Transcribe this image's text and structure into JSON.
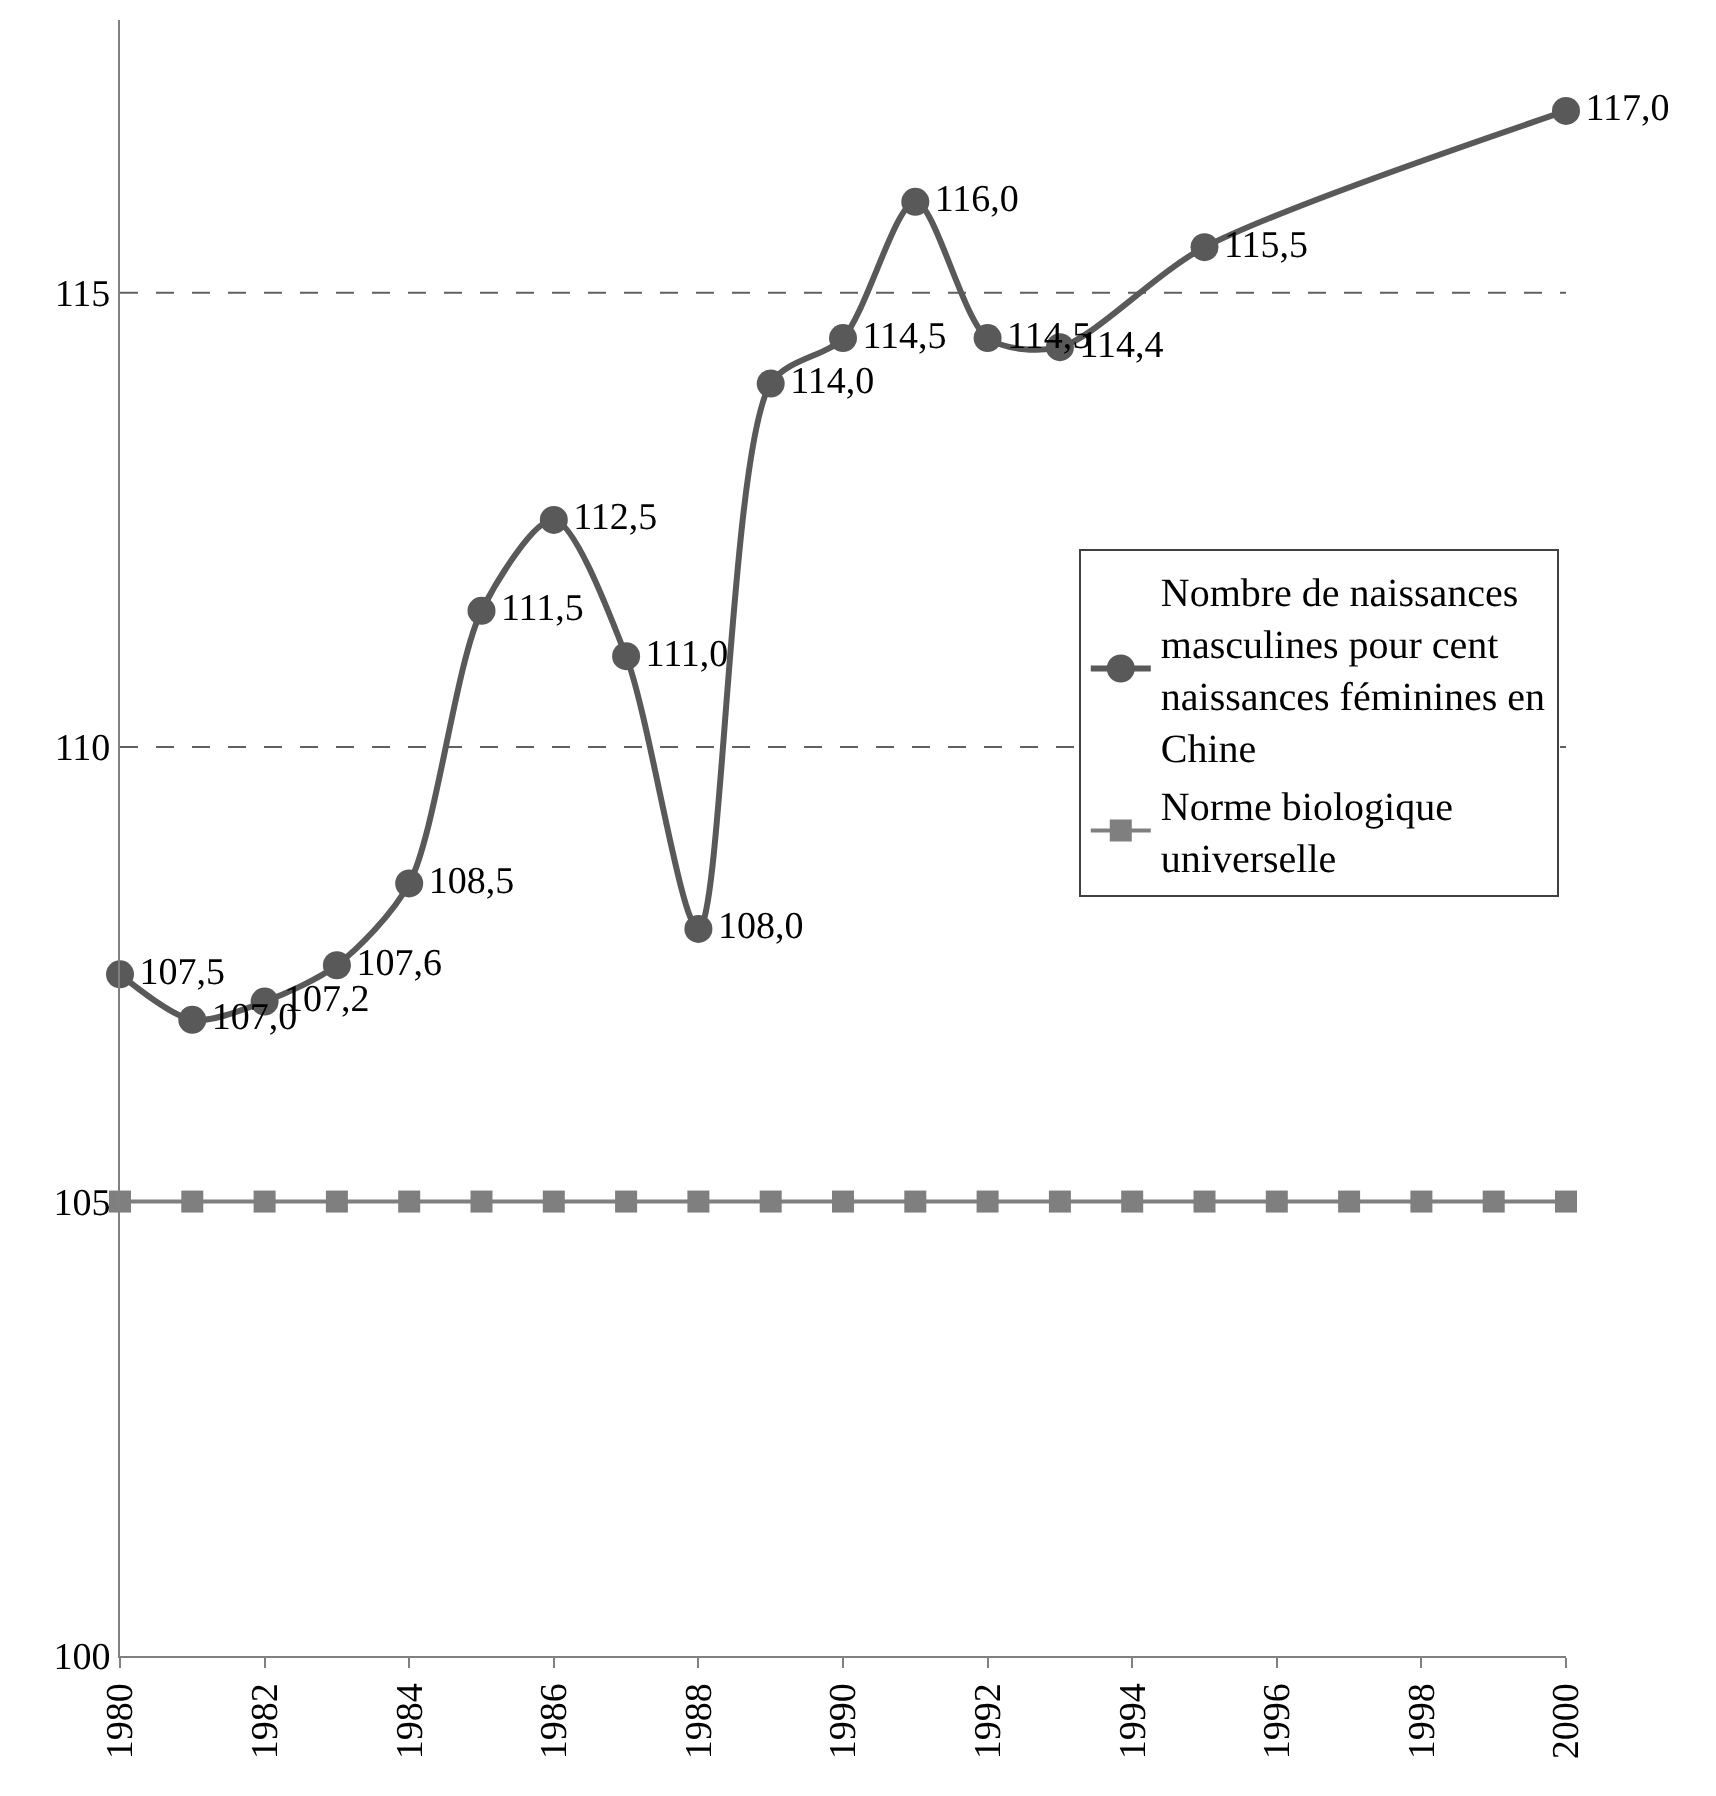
{
  "chart_data": {
    "type": "line",
    "x": [
      1980,
      1981,
      1982,
      1983,
      1984,
      1985,
      1986,
      1987,
      1988,
      1989,
      1990,
      1991,
      1992,
      1993,
      1994,
      1995,
      1996,
      1997,
      1998,
      1999,
      2000
    ],
    "series": [
      {
        "name": "Nombre de naissances masculines pour cent naissances féminines en Chine",
        "color": "#595959",
        "marker": "circle",
        "x": [
          1980,
          1981,
          1982,
          1983,
          1984,
          1985,
          1986,
          1987,
          1988,
          1989,
          1990,
          1991,
          1992,
          1993,
          1995,
          2000
        ],
        "values": [
          107.5,
          107.0,
          107.2,
          107.6,
          108.5,
          111.5,
          112.5,
          111.0,
          108.0,
          114.0,
          114.5,
          116.0,
          114.5,
          114.4,
          115.5,
          117.0
        ],
        "value_labels": [
          "107,5",
          "107,0",
          "107,2",
          "107,6",
          "108,5",
          "111,5",
          "112,5",
          "111,0",
          "108,0",
          "114,0",
          "114,5",
          "116,0",
          "114,5",
          "114,4",
          "115,5",
          "117,0"
        ]
      },
      {
        "name": "Norme biologique universelle",
        "color": "#7f7f7f",
        "marker": "square",
        "values": [
          105,
          105,
          105,
          105,
          105,
          105,
          105,
          105,
          105,
          105,
          105,
          105,
          105,
          105,
          105,
          105,
          105,
          105,
          105,
          105,
          105
        ]
      }
    ],
    "xlim": [
      1980,
      2000
    ],
    "xticks": [
      1980,
      1982,
      1984,
      1986,
      1988,
      1990,
      1992,
      1994,
      1996,
      1998,
      2000
    ],
    "ylim": [
      100,
      118
    ],
    "yticks": [
      100,
      105,
      110,
      115
    ],
    "ref_lines": [
      {
        "axis": "y",
        "value": 110,
        "color": "#606060",
        "line_style": "dashed"
      },
      {
        "axis": "y",
        "value": 115,
        "color": "#606060",
        "line_style": "dashed"
      }
    ],
    "legend": "right",
    "line_style": "solid"
  }
}
